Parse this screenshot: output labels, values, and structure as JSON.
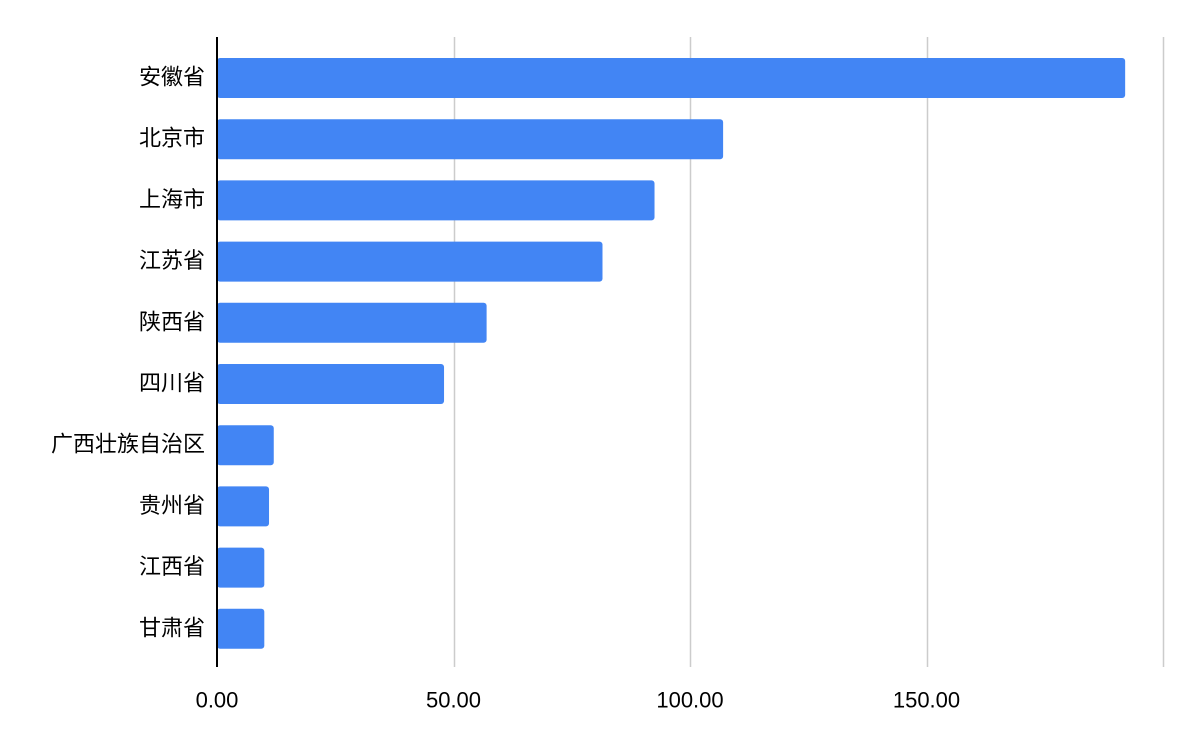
{
  "chart_data": {
    "type": "bar",
    "orientation": "horizontal",
    "categories": [
      "安徽省",
      "北京市",
      "上海市",
      "江苏省",
      "陕西省",
      "四川省",
      "广西壮族自治区",
      "贵州省",
      "江西省",
      "甘肃省"
    ],
    "values": [
      192,
      107,
      92.5,
      81.5,
      57,
      48,
      12,
      11,
      10,
      10
    ],
    "xlim": [
      0,
      200
    ],
    "x_ticks": [
      0,
      50,
      100,
      150
    ],
    "x_tick_labels": [
      "0.00",
      "50.00",
      "100.00",
      "150.00"
    ],
    "grid": true,
    "title": "",
    "xlabel": "",
    "ylabel": "",
    "colors": {
      "bar": "#4285f4",
      "grid": "#cccccc",
      "axis": "#000000"
    }
  }
}
